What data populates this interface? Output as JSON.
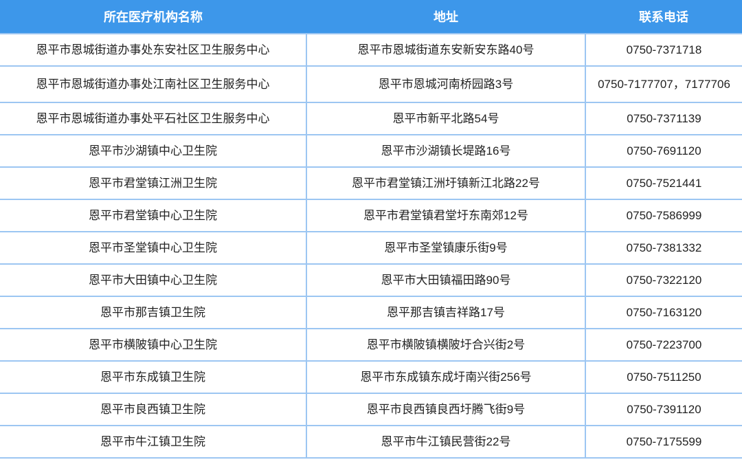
{
  "headers": [
    "所在医疗机构名称",
    "地址",
    "联系电话"
  ],
  "rows": [
    [
      "恩平市恩城街道办事处东安社区卫生服务中心",
      "恩平市恩城街道东安新安东路40号",
      "0750-7371718"
    ],
    [
      "恩平市恩城街道办事处江南社区卫生服务中心",
      "恩平市恩城河南桥园路3号",
      "0750-7177707，7177706"
    ],
    [
      "恩平市恩城街道办事处平石社区卫生服务中心",
      "恩平市新平北路54号",
      "0750-7371139"
    ],
    [
      "恩平市沙湖镇中心卫生院",
      "恩平市沙湖镇长堤路16号",
      "0750-7691120"
    ],
    [
      "恩平市君堂镇江洲卫生院",
      "恩平市君堂镇江洲圩镇新江北路22号",
      "0750-7521441"
    ],
    [
      "恩平市君堂镇中心卫生院",
      "恩平市君堂镇君堂圩东南郊12号",
      "0750-7586999"
    ],
    [
      "恩平市圣堂镇中心卫生院",
      "恩平市圣堂镇康乐街9号",
      "0750-7381332"
    ],
    [
      "恩平市大田镇中心卫生院",
      "恩平市大田镇福田路90号",
      "0750-7322120"
    ],
    [
      "恩平市那吉镇卫生院",
      "恩平那吉镇吉祥路17号",
      "0750-7163120"
    ],
    [
      "恩平市横陂镇中心卫生院",
      "恩平市横陂镇横陂圩合兴街2号",
      "0750-7223700"
    ],
    [
      "恩平市东成镇卫生院",
      "恩平市东成镇东成圩南兴街256号",
      "0750-7511250"
    ],
    [
      "恩平市良西镇卫生院",
      "恩平市良西镇良西圩腾飞街9号",
      "0750-7391120"
    ],
    [
      "恩平市牛江镇卫生院",
      "恩平市牛江镇民营街22号",
      "0750-7175599"
    ]
  ],
  "colors": {
    "header_bg": "#3d97ea",
    "header_text": "#ffffff",
    "border": "#9cc6f2"
  }
}
